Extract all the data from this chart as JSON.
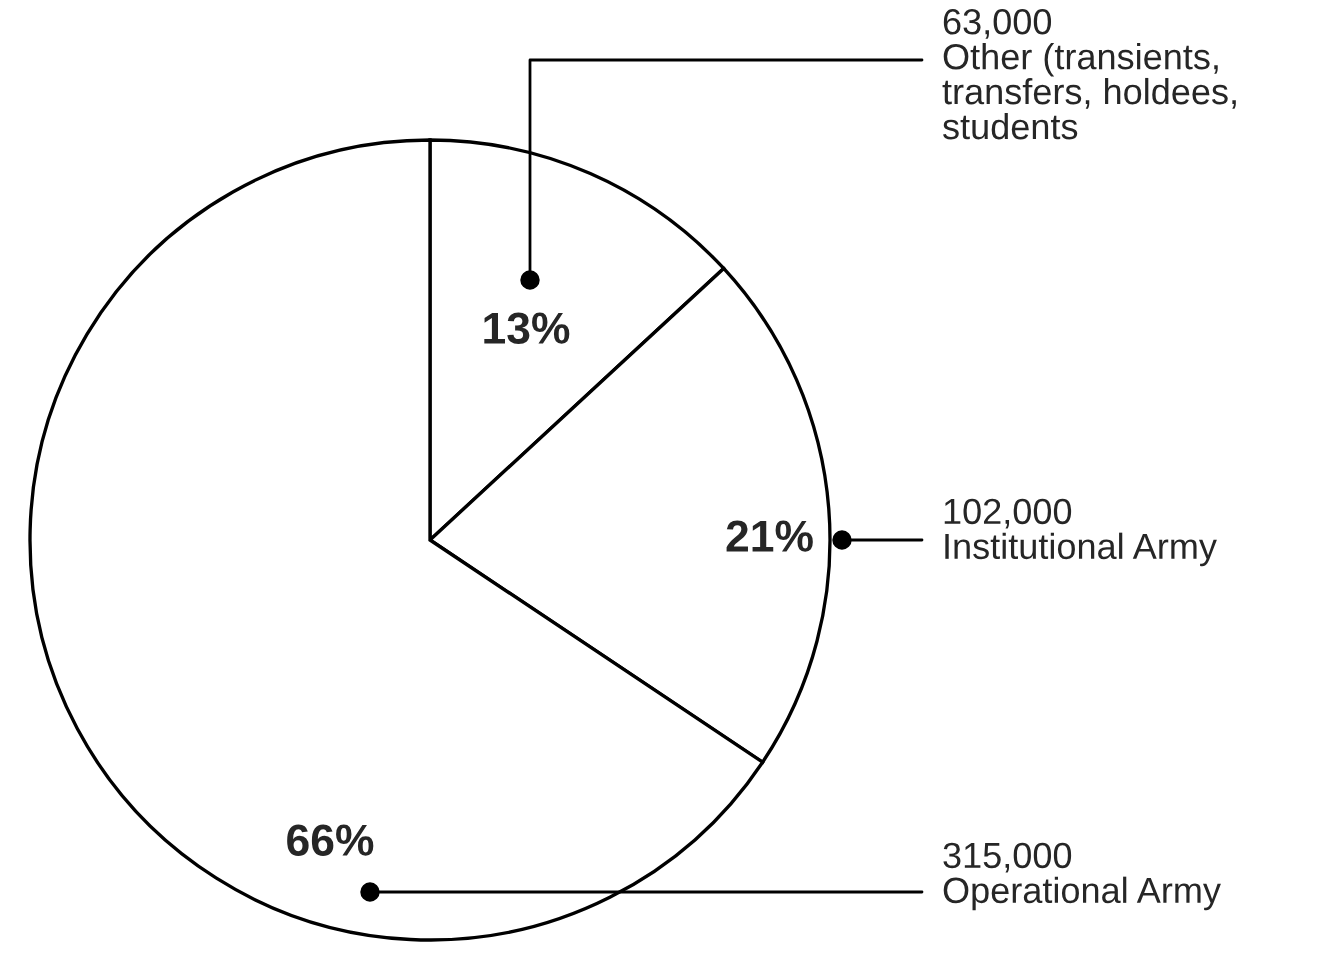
{
  "chart_data": {
    "type": "pie",
    "categories": [
      "Other (transients, transfers, holdees, students",
      "Institutional Army",
      "Operational Army"
    ],
    "values": [
      63000,
      102000,
      315000
    ],
    "value_labels": [
      "63,000",
      "102,000",
      "315,000"
    ],
    "colors": [
      "#ffffff",
      "#ffffff",
      "#ffffff"
    ],
    "annotations": [
      "13%",
      "21%",
      "66%"
    ]
  }
}
